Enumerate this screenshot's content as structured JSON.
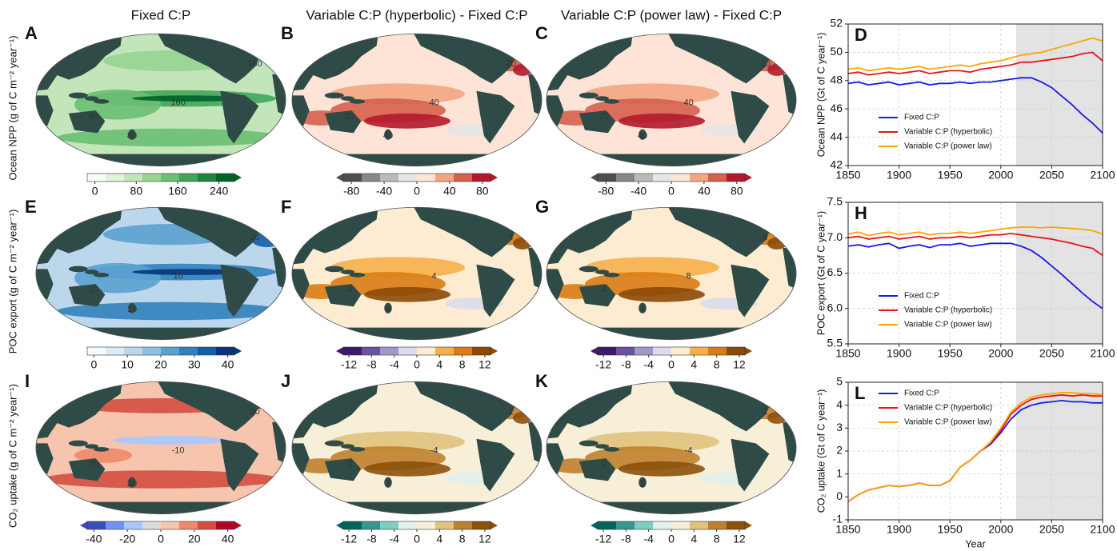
{
  "maps": {
    "column_titles": [
      "Fixed C:P",
      "Variable C:P (hyperbolic) - Fixed C:P",
      "Variable C:P (power law) - Fixed C:P"
    ],
    "row_labels": [
      "Ocean NPP (g of C m⁻² year⁻¹)",
      "POC export (g of C m⁻² year⁻¹)",
      "CO₂ uptake (g of C m⁻² year⁻¹)"
    ],
    "panels": [
      {
        "letter": "A",
        "clim": [
          -15,
          270
        ],
        "cticks": [
          0,
          80,
          160,
          240
        ],
        "extend": "max",
        "base": 2,
        "colors": [
          "#f7fcf5",
          "#e0f3db",
          "#c2e6b9",
          "#98d494",
          "#6cbf73",
          "#41a55c",
          "#1f8540",
          "#006228"
        ],
        "contour_labels": [
          "80",
          "160",
          "80",
          "160"
        ]
      },
      {
        "letter": "B",
        "clim": [
          -90,
          90
        ],
        "cticks": [
          -80,
          -40,
          0,
          40,
          80
        ],
        "extend": "both",
        "base": 4,
        "colors": [
          "#4d4d4d",
          "#878787",
          "#bababa",
          "#e6e6e6",
          "#fde4d6",
          "#f4a582",
          "#d6604d",
          "#b2182b"
        ],
        "contour_labels": [
          "20",
          "40",
          "40",
          "20"
        ]
      },
      {
        "letter": "C",
        "clim": [
          -90,
          90
        ],
        "cticks": [
          -80,
          -40,
          0,
          40,
          80
        ],
        "extend": "both",
        "base": 4,
        "colors": [
          "#4d4d4d",
          "#878787",
          "#bababa",
          "#e6e6e6",
          "#fde4d6",
          "#f4a582",
          "#d6604d",
          "#b2182b"
        ],
        "contour_labels": [
          "20",
          "40",
          "40",
          "20"
        ]
      },
      {
        "letter": "E",
        "clim": [
          -2,
          42
        ],
        "cticks": [
          0,
          10,
          20,
          30,
          40
        ],
        "extend": "max",
        "base": 2,
        "colors": [
          "#f7fbff",
          "#dceaf6",
          "#bcd7eb",
          "#8fc1de",
          "#5ba2d0",
          "#3282be",
          "#1460a8",
          "#08357a"
        ],
        "contour_labels": [
          "10",
          "10",
          "10",
          "10"
        ]
      },
      {
        "letter": "F",
        "clim": [
          -13,
          13
        ],
        "cticks": [
          -12,
          -8,
          -4,
          0,
          4,
          8,
          12
        ],
        "extend": "both",
        "base": 4,
        "colors": [
          "#3f1a6b",
          "#6a51a3",
          "#9e9ac8",
          "#dcdcec",
          "#fdebd2",
          "#f6b04a",
          "#d97d15",
          "#8c4a06"
        ],
        "contour_labels": [
          "4",
          "4",
          "4",
          "4"
        ]
      },
      {
        "letter": "G",
        "clim": [
          -13,
          13
        ],
        "cticks": [
          -12,
          -8,
          -4,
          0,
          4,
          8,
          12
        ],
        "extend": "both",
        "base": 4,
        "colors": [
          "#3f1a6b",
          "#6a51a3",
          "#9e9ac8",
          "#dcdcec",
          "#fdebd2",
          "#f6b04a",
          "#d97d15",
          "#8c4a06"
        ],
        "contour_labels": [
          "4",
          "8",
          "4",
          "8"
        ]
      },
      {
        "letter": "I",
        "clim": [
          -44,
          44
        ],
        "cticks": [
          -40,
          -20,
          0,
          20,
          40
        ],
        "extend": "both",
        "base": 4,
        "colors": [
          "#3b4cc0",
          "#6f92f3",
          "#aac7fd",
          "#dddcdc",
          "#f7c5ad",
          "#ee8a6c",
          "#d44e41",
          "#b40426"
        ],
        "contour_labels": [
          "20",
          "-10",
          "20",
          "20"
        ]
      },
      {
        "letter": "J",
        "clim": [
          -13,
          13
        ],
        "cticks": [
          -12,
          -8,
          -4,
          0,
          4,
          8,
          12
        ],
        "extend": "both",
        "base": 4,
        "colors": [
          "#01665e",
          "#35978f",
          "#80cdc1",
          "#e0f0ec",
          "#f8efd9",
          "#dfc27d",
          "#bf812d",
          "#8c510a"
        ],
        "contour_labels": [
          "2",
          "-4",
          "2",
          "2"
        ]
      },
      {
        "letter": "K",
        "clim": [
          -13,
          13
        ],
        "cticks": [
          -12,
          -8,
          -4,
          0,
          4,
          8,
          12
        ],
        "extend": "both",
        "base": 4,
        "colors": [
          "#01665e",
          "#35978f",
          "#80cdc1",
          "#e0f0ec",
          "#f8efd9",
          "#dfc27d",
          "#bf812d",
          "#8c510a"
        ],
        "contour_labels": [
          "2",
          "-4",
          "2",
          "2"
        ]
      }
    ]
  },
  "chart_data": [
    {
      "type": "line",
      "panel": "D",
      "ylabel": "Ocean NPP (Gt of C year⁻¹)",
      "x": [
        1850,
        1860,
        1870,
        1880,
        1890,
        1900,
        1910,
        1920,
        1930,
        1940,
        1950,
        1960,
        1970,
        1980,
        1990,
        2000,
        2010,
        2020,
        2030,
        2040,
        2050,
        2060,
        2070,
        2080,
        2090,
        2100
      ],
      "xlim": [
        1850,
        2100
      ],
      "xticks": [
        1850,
        1900,
        1950,
        2000,
        2050,
        2100
      ],
      "ylim": [
        42,
        52
      ],
      "yticks": [
        42,
        44,
        46,
        48,
        50,
        52
      ],
      "grid": true,
      "legend": "lower left",
      "shaded_x": [
        2015,
        2100
      ],
      "series": [
        {
          "name": "Fixed C:P",
          "color": "#1a1ae6",
          "values": [
            47.8,
            47.9,
            47.7,
            47.8,
            47.9,
            47.7,
            47.8,
            47.9,
            47.7,
            47.8,
            47.8,
            47.9,
            47.8,
            47.9,
            47.9,
            48.0,
            48.1,
            48.2,
            48.2,
            47.9,
            47.5,
            46.9,
            46.3,
            45.6,
            45.0,
            44.3
          ]
        },
        {
          "name": "Variable C:P (hyperbolic)",
          "color": "#e8141c",
          "values": [
            48.5,
            48.6,
            48.4,
            48.5,
            48.6,
            48.5,
            48.6,
            48.7,
            48.5,
            48.6,
            48.7,
            48.7,
            48.6,
            48.8,
            48.9,
            49.0,
            49.1,
            49.3,
            49.3,
            49.4,
            49.5,
            49.6,
            49.7,
            49.9,
            50.0,
            49.4
          ]
        },
        {
          "name": "Variable C:P (power law)",
          "color": "#ffa500",
          "values": [
            48.8,
            48.9,
            48.7,
            48.8,
            48.9,
            48.8,
            48.9,
            49.0,
            48.8,
            48.9,
            49.0,
            49.1,
            49.0,
            49.2,
            49.3,
            49.4,
            49.6,
            49.8,
            49.9,
            50.0,
            50.2,
            50.4,
            50.6,
            50.8,
            51.0,
            50.8
          ]
        }
      ]
    },
    {
      "type": "line",
      "panel": "H",
      "ylabel": "POC export (Gt of C year⁻¹)",
      "x": [
        1850,
        1860,
        1870,
        1880,
        1890,
        1900,
        1910,
        1920,
        1930,
        1940,
        1950,
        1960,
        1970,
        1980,
        1990,
        2000,
        2010,
        2020,
        2030,
        2040,
        2050,
        2060,
        2070,
        2080,
        2090,
        2100
      ],
      "xlim": [
        1850,
        2100
      ],
      "xticks": [
        1850,
        1900,
        1950,
        2000,
        2050,
        2100
      ],
      "ylim": [
        5.5,
        7.5
      ],
      "yticks": [
        5.5,
        {
          "value": 6,
          "label": "6.0"
        },
        6.5,
        {
          "value": 7,
          "label": "7.0"
        },
        7.5
      ],
      "grid": true,
      "legend": "lower left",
      "shaded_x": [
        2015,
        2100
      ],
      "series": [
        {
          "name": "Fixed C:P",
          "color": "#1a1ae6",
          "values": [
            6.88,
            6.9,
            6.87,
            6.9,
            6.92,
            6.85,
            6.88,
            6.9,
            6.86,
            6.9,
            6.9,
            6.92,
            6.88,
            6.9,
            6.92,
            6.92,
            6.92,
            6.88,
            6.82,
            6.72,
            6.6,
            6.48,
            6.35,
            6.22,
            6.1,
            6.0
          ]
        },
        {
          "name": "Variable C:P (hyperbolic)",
          "color": "#e8141c",
          "values": [
            7.0,
            7.02,
            6.98,
            7.0,
            7.02,
            6.98,
            7.0,
            7.02,
            6.98,
            7.0,
            7.0,
            7.02,
            7.0,
            7.02,
            7.04,
            7.04,
            7.06,
            7.04,
            7.02,
            7.0,
            6.98,
            6.95,
            6.92,
            6.88,
            6.85,
            6.75
          ]
        },
        {
          "name": "Variable C:P (power law)",
          "color": "#ffa500",
          "values": [
            7.05,
            7.08,
            7.03,
            7.06,
            7.08,
            7.04,
            7.06,
            7.08,
            7.04,
            7.06,
            7.06,
            7.08,
            7.06,
            7.08,
            7.1,
            7.12,
            7.14,
            7.15,
            7.15,
            7.14,
            7.15,
            7.14,
            7.13,
            7.12,
            7.1,
            7.05
          ]
        }
      ]
    },
    {
      "type": "line",
      "panel": "L",
      "ylabel": "CO₂ uptake (Gt of C year⁻¹)",
      "xlabel": "Year",
      "x": [
        1850,
        1860,
        1870,
        1880,
        1890,
        1900,
        1910,
        1920,
        1930,
        1940,
        1950,
        1960,
        1970,
        1980,
        1990,
        2000,
        2010,
        2020,
        2030,
        2040,
        2050,
        2060,
        2070,
        2080,
        2090,
        2100
      ],
      "xlim": [
        1850,
        2100
      ],
      "xticks": [
        1850,
        1900,
        1950,
        2000,
        2050,
        2100
      ],
      "ylim": [
        -1,
        5
      ],
      "yticks": [
        -1,
        0,
        1,
        2,
        3,
        4,
        5
      ],
      "grid": true,
      "legend": "upper left",
      "shaded_x": [
        2015,
        2100
      ],
      "series": [
        {
          "name": "Fixed C:P",
          "color": "#1a1ae6",
          "values": [
            -0.2,
            0.1,
            0.3,
            0.4,
            0.5,
            0.45,
            0.5,
            0.6,
            0.5,
            0.5,
            0.7,
            1.3,
            1.6,
            2.0,
            2.3,
            2.8,
            3.4,
            3.8,
            4.0,
            4.1,
            4.15,
            4.2,
            4.15,
            4.15,
            4.1,
            4.1
          ]
        },
        {
          "name": "Variable C:P (hyperbolic)",
          "color": "#e8141c",
          "values": [
            -0.2,
            0.1,
            0.3,
            0.4,
            0.5,
            0.45,
            0.5,
            0.6,
            0.5,
            0.5,
            0.7,
            1.3,
            1.6,
            2.0,
            2.35,
            2.9,
            3.6,
            4.0,
            4.25,
            4.35,
            4.4,
            4.45,
            4.4,
            4.45,
            4.4,
            4.4
          ]
        },
        {
          "name": "Variable C:P (power law)",
          "color": "#ffa500",
          "values": [
            -0.2,
            0.1,
            0.3,
            0.4,
            0.5,
            0.45,
            0.5,
            0.6,
            0.5,
            0.5,
            0.7,
            1.3,
            1.6,
            2.0,
            2.4,
            3.0,
            3.7,
            4.1,
            4.35,
            4.45,
            4.5,
            4.55,
            4.55,
            4.5,
            4.5,
            4.45
          ]
        }
      ]
    }
  ]
}
